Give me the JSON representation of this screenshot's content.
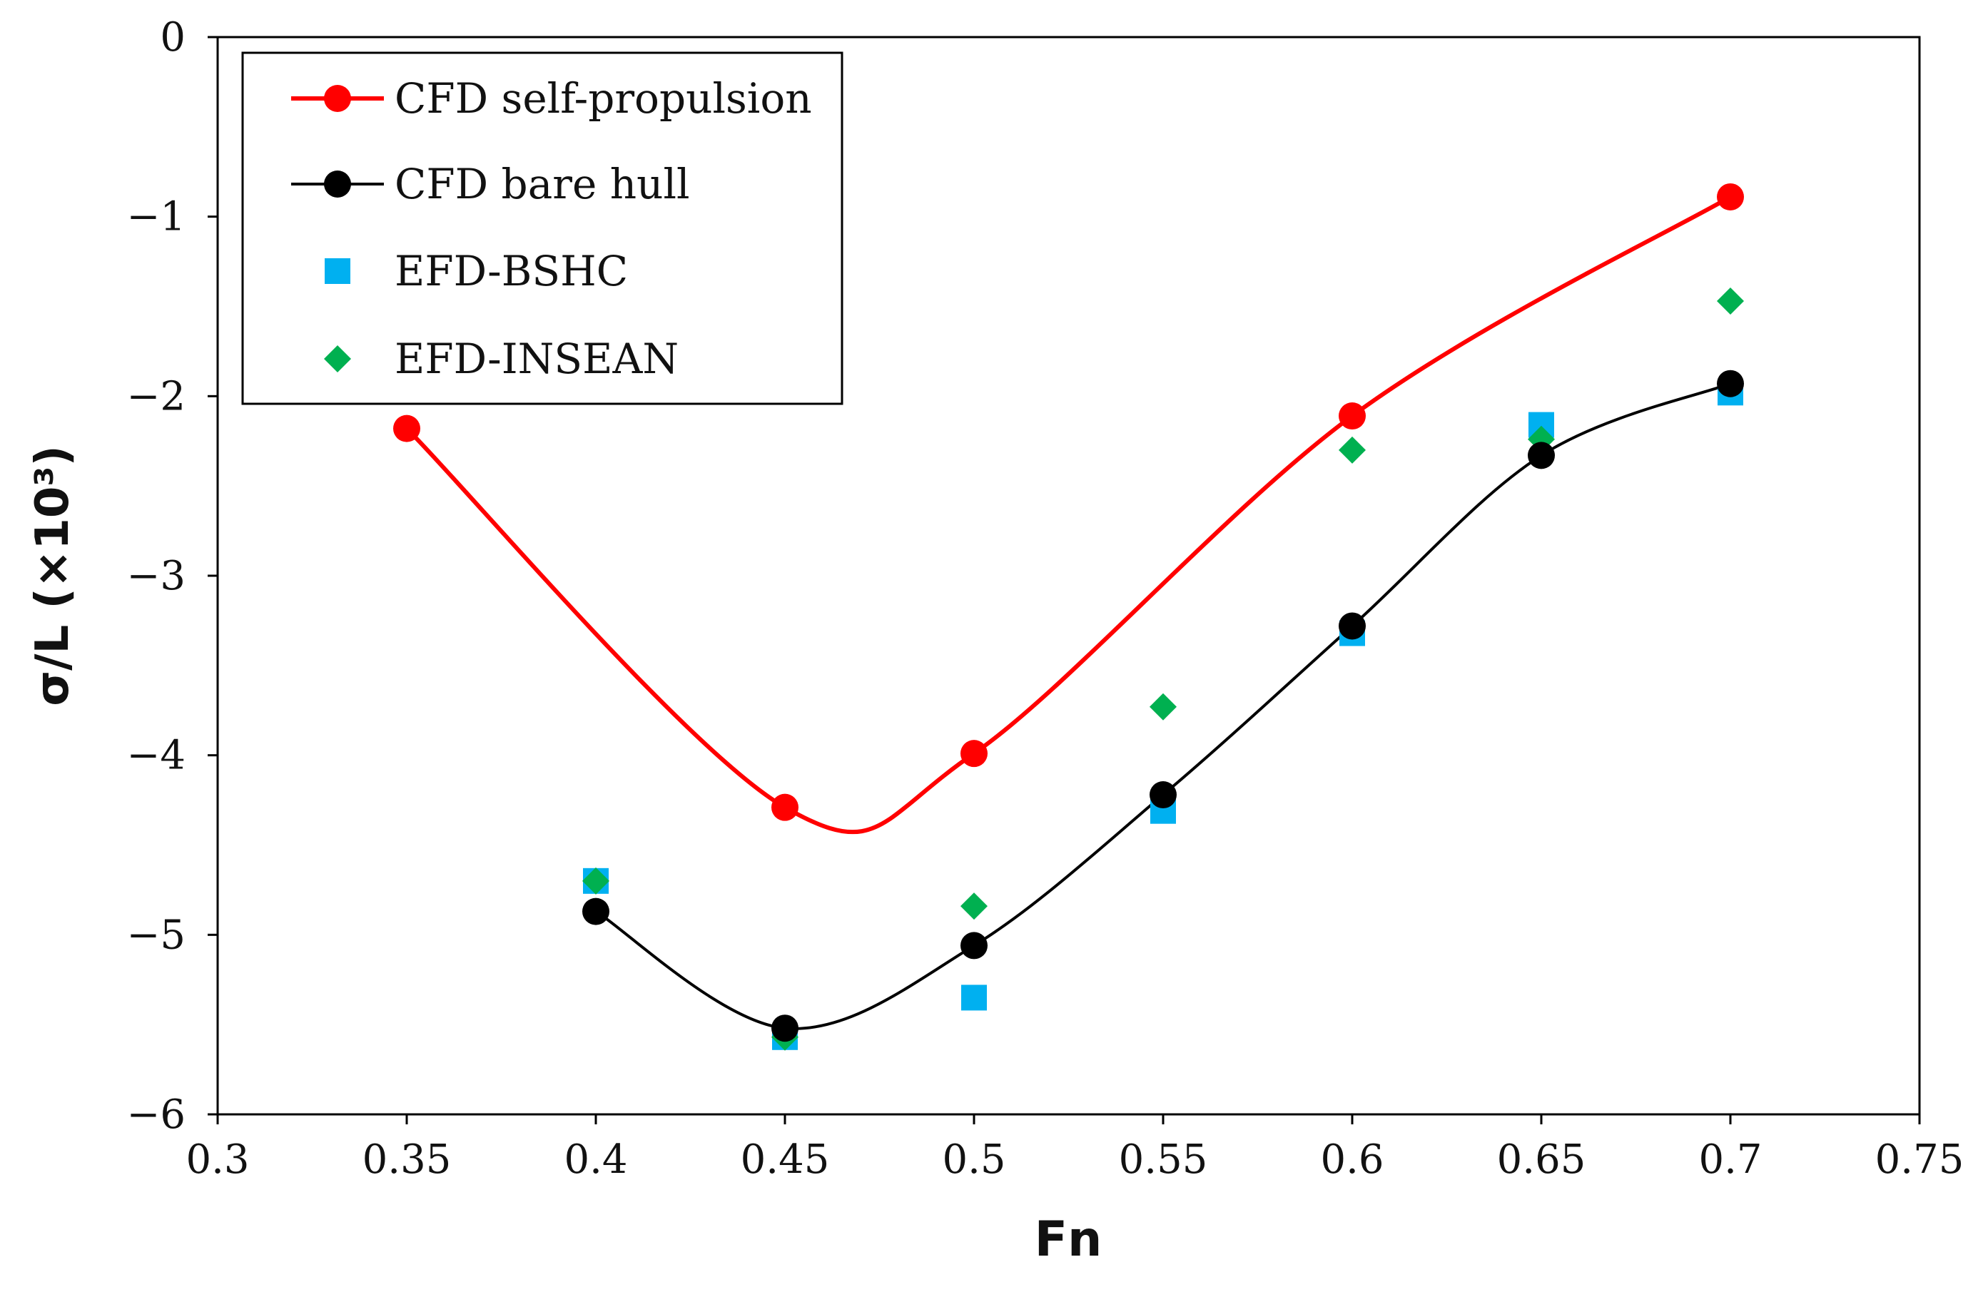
{
  "chart_data": {
    "type": "scatter",
    "title": "",
    "xlabel": "Fn",
    "ylabel": "σ/L (×10³)",
    "xlim": [
      0.3,
      0.75
    ],
    "ylim": [
      -6,
      0
    ],
    "x_ticks": [
      "0.3",
      "0.35",
      "0.4",
      "0.45",
      "0.5",
      "0.55",
      "0.6",
      "0.65",
      "0.7",
      "0.75"
    ],
    "y_ticks": [
      "0",
      "−1",
      "−2",
      "−3",
      "−4",
      "−5",
      "−6"
    ],
    "grid": false,
    "legend_position": "top-left",
    "series": [
      {
        "name": "CFD self-propulsion",
        "color": "#ff0000",
        "style": "line-circle",
        "x": [
          0.35,
          0.45,
          0.5,
          0.6,
          0.7
        ],
        "y": [
          -2.18,
          -4.29,
          -3.99,
          -2.11,
          -0.89
        ]
      },
      {
        "name": "CFD bare hull",
        "color": "#000000",
        "style": "line-circle",
        "x": [
          0.4,
          0.45,
          0.5,
          0.55,
          0.6,
          0.65,
          0.7
        ],
        "y": [
          -4.87,
          -5.52,
          -5.06,
          -4.22,
          -3.28,
          -2.33,
          -1.93
        ]
      },
      {
        "name": "EFD-BSHC",
        "color": "#00b0f0",
        "style": "square",
        "x": [
          0.4,
          0.45,
          0.5,
          0.55,
          0.6,
          0.65,
          0.7
        ],
        "y": [
          -4.7,
          -5.57,
          -5.35,
          -4.31,
          -3.32,
          -2.16,
          -1.98
        ]
      },
      {
        "name": "EFD-INSEAN",
        "color": "#00b050",
        "style": "diamond",
        "x": [
          0.4,
          0.45,
          0.5,
          0.55,
          0.6,
          0.65,
          0.7
        ],
        "y": [
          -4.7,
          -5.57,
          -4.84,
          -3.73,
          -2.3,
          -2.24,
          -1.47
        ]
      }
    ]
  }
}
